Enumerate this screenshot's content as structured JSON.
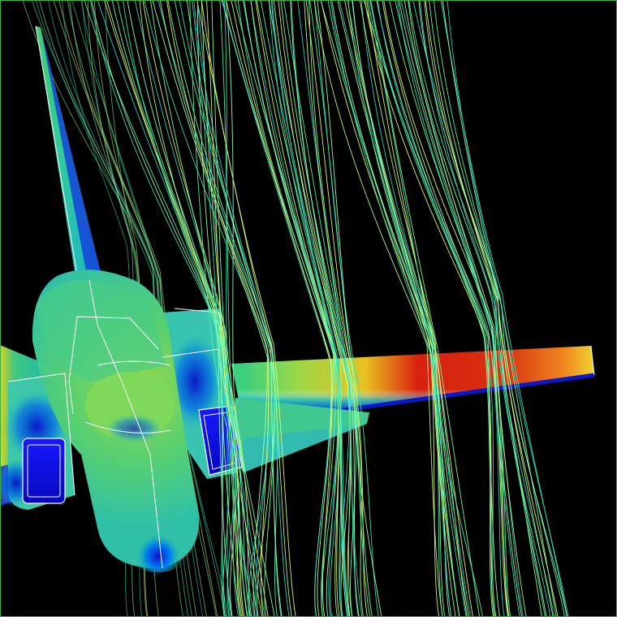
{
  "scene": {
    "background": "#000000",
    "frame_color": "#3cb43c",
    "streamline_colors": [
      "#7dff9e",
      "#52f5a6",
      "#33e6b4",
      "#9dffb8",
      "#2cd6c4",
      "#b6ff8a",
      "#e8ff6a"
    ],
    "pressure_colormap": [
      "#0a10d8",
      "#0060ff",
      "#00b8e8",
      "#2ee08a",
      "#9ae03a",
      "#f0d018",
      "#ff7010",
      "#d01808"
    ]
  }
}
